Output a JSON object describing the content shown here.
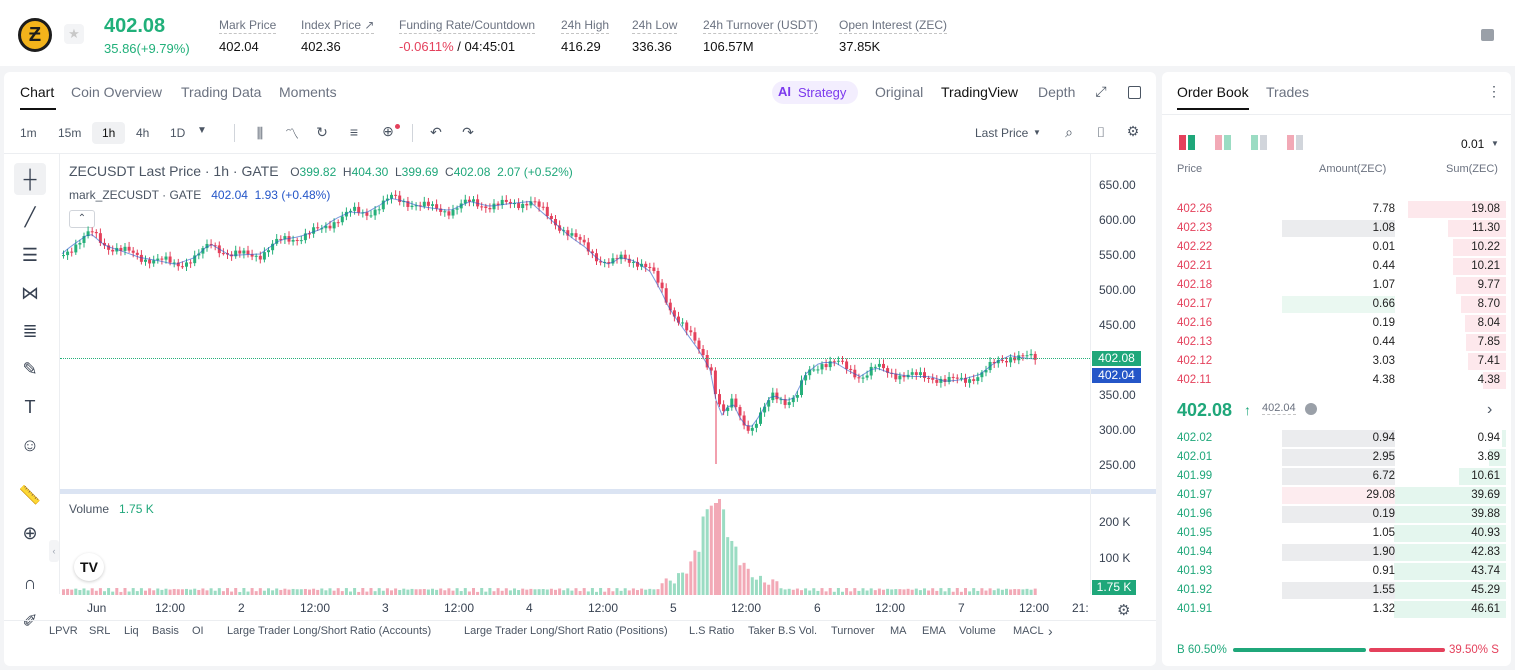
{
  "ticker": {
    "price": "402.08",
    "change": "35.86(+9.79%)"
  },
  "stats": [
    {
      "label": "Mark Price",
      "value": "402.04",
      "x": 219
    },
    {
      "label": "Index Price ↗",
      "value": "402.36",
      "x": 301
    },
    {
      "label": "Funding Rate/Countdown",
      "value_red": "-0.0611%",
      "value": " / 04:45:01",
      "x": 399
    },
    {
      "label": "24h High",
      "value": "416.29",
      "x": 561
    },
    {
      "label": "24h Low",
      "value": "336.36",
      "x": 632
    },
    {
      "label": "24h Turnover (USDT)",
      "value": "106.57M",
      "x": 703
    },
    {
      "label": "Open Interest (ZEC)",
      "value": "37.85K",
      "x": 839
    }
  ],
  "chart_tabs": [
    "Chart",
    "Coin Overview",
    "Trading Data",
    "Moments"
  ],
  "view_tabs": {
    "strategy": "Strategy",
    "original": "Original",
    "tradingview": "TradingView",
    "depth": "Depth"
  },
  "intervals": [
    "1m",
    "15m",
    "1h",
    "4h",
    "1D"
  ],
  "toolbar": {
    "last_price": "Last Price"
  },
  "legend": {
    "symbol": "ZECUSDT Last Price · 1h · GATE",
    "o_l": "O",
    "o": "399.82",
    "h_l": "H",
    "h": "404.30",
    "l_l": "L",
    "l": "399.69",
    "c_l": "C",
    "c": "402.08",
    "chg": "2.07 (+0.52%)",
    "mark": "mark_ZECUSDT · GATE",
    "mark_v": "402.04",
    "mark_chg": "1.93 (+0.48%)"
  },
  "price_axis": [
    "650.00",
    "600.00",
    "550.00",
    "500.00",
    "450.00",
    "400.00",
    "350.00",
    "300.00",
    "250.00"
  ],
  "price_tags": {
    "last": "402.08",
    "mark": "402.04"
  },
  "volume": {
    "label": "Volume",
    "value": "1.75 K",
    "axis": [
      "200 K",
      "100 K"
    ],
    "tag": "1.75 K"
  },
  "time_axis": [
    "Jun",
    "12:00",
    "2",
    "12:00",
    "3",
    "12:00",
    "4",
    "12:00",
    "5",
    "12:00",
    "6",
    "12:00",
    "7",
    "12:00",
    "21:"
  ],
  "indicators": [
    "LPVR",
    "SRL",
    "Liq",
    "Basis",
    "OI",
    "Large Trader Long/Short Ratio (Accounts)",
    "Large Trader Long/Short Ratio (Positions)",
    "L.S Ratio",
    "Taker B.S Vol.",
    "Turnover",
    "MA",
    "EMA",
    "Volume",
    "MACL"
  ],
  "orderbook": {
    "tabs": [
      "Order Book",
      "Trades"
    ],
    "precision": "0.01",
    "headers": [
      "Price",
      "Amount(ZEC)",
      "Sum(ZEC)"
    ],
    "asks": [
      [
        "402.26",
        "7.78",
        "19.08",
        0
      ],
      [
        "402.23",
        "1.08",
        "11.30",
        1
      ],
      [
        "402.22",
        "0.01",
        "10.22",
        0
      ],
      [
        "402.21",
        "0.44",
        "10.21",
        0
      ],
      [
        "402.18",
        "1.07",
        "9.77",
        0
      ],
      [
        "402.17",
        "0.66",
        "8.70",
        2
      ],
      [
        "402.16",
        "0.19",
        "8.04",
        0
      ],
      [
        "402.13",
        "0.44",
        "7.85",
        0
      ],
      [
        "402.12",
        "3.03",
        "7.41",
        0
      ],
      [
        "402.11",
        "4.38",
        "4.38",
        0
      ]
    ],
    "mid_price": "402.08",
    "mid_mark": "402.04",
    "bids": [
      [
        "402.02",
        "0.94",
        "0.94",
        1
      ],
      [
        "402.01",
        "2.95",
        "3.89",
        1
      ],
      [
        "401.99",
        "6.72",
        "10.61",
        2
      ],
      [
        "401.97",
        "29.08",
        "39.69",
        3
      ],
      [
        "401.96",
        "0.19",
        "39.88",
        1
      ],
      [
        "401.95",
        "1.05",
        "40.93",
        0
      ],
      [
        "401.94",
        "1.90",
        "42.83",
        1
      ],
      [
        "401.93",
        "0.91",
        "43.74",
        0
      ],
      [
        "401.92",
        "1.55",
        "45.29",
        2
      ],
      [
        "401.91",
        "1.32",
        "46.61",
        0
      ]
    ],
    "ratio": {
      "buy": "B 60.50%",
      "sell": "39.50% S"
    }
  },
  "colors": {
    "up": "#26b07a",
    "down": "#e4415c"
  }
}
